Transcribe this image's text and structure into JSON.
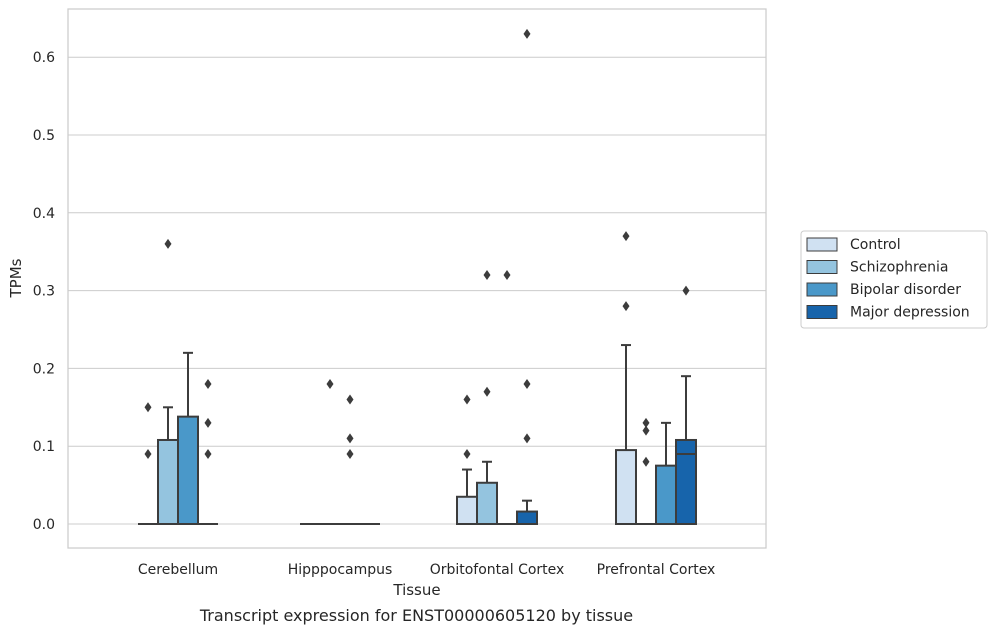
{
  "caption": "Transcript expression for ENST00000605120 by tissue",
  "chart_data": {
    "type": "box",
    "xlabel": "Tissue",
    "ylabel": "TPMs",
    "ylim": [
      -0.03,
      0.66
    ],
    "yticks": [
      0.0,
      0.1,
      0.2,
      0.3,
      0.4,
      0.5,
      0.6
    ],
    "ytick_labels": [
      "0.0",
      "0.1",
      "0.2",
      "0.3",
      "0.4",
      "0.5",
      "0.6"
    ],
    "grid": "horizontal",
    "legend_position": "right",
    "categories": [
      "Cerebellum",
      "Hipppocampus",
      "Orbitofontal Cortex",
      "Prefrontal Cortex"
    ],
    "series": [
      {
        "name": "Control",
        "color": "#d0e1f2",
        "boxes": [
          {
            "q1": 0,
            "median": 0,
            "q3": 0,
            "whisker_low": 0,
            "whisker_high": 0,
            "outliers": [
              0.09,
              0.15
            ]
          },
          {
            "q1": 0,
            "median": 0,
            "q3": 0,
            "whisker_low": 0,
            "whisker_high": 0,
            "outliers": []
          },
          {
            "q1": 0,
            "median": 0,
            "q3": 0.035,
            "whisker_low": 0,
            "whisker_high": 0.07,
            "outliers": [
              0.09,
              0.16
            ]
          },
          {
            "q1": 0,
            "median": 0,
            "q3": 0.095,
            "whisker_low": 0,
            "whisker_high": 0.23,
            "outliers": [
              0.28,
              0.37
            ]
          }
        ]
      },
      {
        "name": "Schizophrenia",
        "color": "#94c4df",
        "boxes": [
          {
            "q1": 0,
            "median": 0,
            "q3": 0.108,
            "whisker_low": 0,
            "whisker_high": 0.15,
            "outliers": [
              0.36
            ]
          },
          {
            "q1": 0,
            "median": 0,
            "q3": 0,
            "whisker_low": 0,
            "whisker_high": 0,
            "outliers": [
              0.18
            ]
          },
          {
            "q1": 0,
            "median": 0,
            "q3": 0.053,
            "whisker_low": 0,
            "whisker_high": 0.08,
            "outliers": [
              0.17,
              0.32
            ]
          },
          {
            "q1": 0,
            "median": 0,
            "q3": 0,
            "whisker_low": 0,
            "whisker_high": 0,
            "outliers": [
              0.08,
              0.12,
              0.13
            ]
          }
        ]
      },
      {
        "name": "Bipolar disorder",
        "color": "#4a98c9",
        "boxes": [
          {
            "q1": 0,
            "median": 0,
            "q3": 0.138,
            "whisker_low": 0,
            "whisker_high": 0.22,
            "outliers": []
          },
          {
            "q1": 0,
            "median": 0,
            "q3": 0,
            "whisker_low": 0,
            "whisker_high": 0,
            "outliers": [
              0.09,
              0.11,
              0.16
            ]
          },
          {
            "q1": 0,
            "median": 0,
            "q3": 0,
            "whisker_low": 0,
            "whisker_high": 0,
            "outliers": [
              0.32
            ]
          },
          {
            "q1": 0,
            "median": 0,
            "q3": 0.075,
            "whisker_low": 0,
            "whisker_high": 0.13,
            "outliers": []
          }
        ]
      },
      {
        "name": "Major depression",
        "color": "#1764ab",
        "boxes": [
          {
            "q1": 0,
            "median": 0,
            "q3": 0,
            "whisker_low": 0,
            "whisker_high": 0,
            "outliers": [
              0.09,
              0.13,
              0.18
            ]
          },
          {
            "q1": 0,
            "median": 0,
            "q3": 0,
            "whisker_low": 0,
            "whisker_high": 0,
            "outliers": []
          },
          {
            "q1": 0,
            "median": 0,
            "q3": 0.016,
            "whisker_low": 0,
            "whisker_high": 0.03,
            "outliers": [
              0.11,
              0.18,
              0.63
            ]
          },
          {
            "q1": 0,
            "median": 0.09,
            "q3": 0.108,
            "whisker_low": 0,
            "whisker_high": 0.19,
            "outliers": [
              0.3
            ]
          }
        ]
      }
    ]
  }
}
